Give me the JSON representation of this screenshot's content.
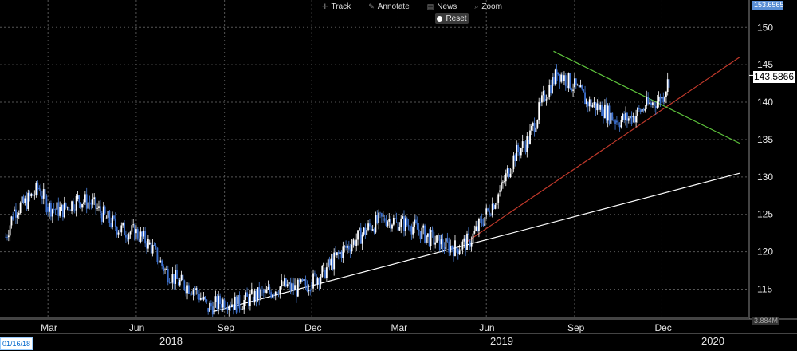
{
  "toolbar": {
    "track_label": "Track",
    "annotate_label": "Annotate",
    "news_label": "News",
    "zoom_label": "Zoom",
    "reset_label": "Reset"
  },
  "price_labels": {
    "top": "153.6565",
    "last": "143.5866"
  },
  "date_stamp": "01/16/18",
  "volume_label": "3.884M",
  "chart_data": {
    "type": "candlestick",
    "x_months": [
      "Mar",
      "Jun",
      "Sep",
      "Dec",
      "Mar",
      "Jun",
      "Sep",
      "Dec"
    ],
    "x_years": [
      "2018",
      "2019",
      "2020"
    ],
    "y_ticks": [
      115,
      120,
      125,
      130,
      135,
      140,
      145,
      150
    ],
    "ylim": [
      111,
      153.6565
    ],
    "grid": true,
    "series_close": [
      [
        "2018-01-16",
        122
      ],
      [
        "2018-01-25",
        125.5
      ],
      [
        "2018-02-05",
        126.5
      ],
      [
        "2018-02-20",
        128.5
      ],
      [
        "2018-03-01",
        126
      ],
      [
        "2018-03-15",
        125.5
      ],
      [
        "2018-04-01",
        127
      ],
      [
        "2018-04-15",
        126.5
      ],
      [
        "2018-05-01",
        124.5
      ],
      [
        "2018-05-15",
        123
      ],
      [
        "2018-06-01",
        122.5
      ],
      [
        "2018-06-15",
        121
      ],
      [
        "2018-07-01",
        117.5
      ],
      [
        "2018-07-15",
        116
      ],
      [
        "2018-08-01",
        115
      ],
      [
        "2018-08-15",
        112.5
      ],
      [
        "2018-09-01",
        113.5
      ],
      [
        "2018-09-15",
        113
      ],
      [
        "2018-10-01",
        114
      ],
      [
        "2018-10-15",
        114.5
      ],
      [
        "2018-11-01",
        115.5
      ],
      [
        "2018-11-15",
        115
      ],
      [
        "2018-12-01",
        116
      ],
      [
        "2018-12-15",
        117.5
      ],
      [
        "2019-01-01",
        120
      ],
      [
        "2019-01-15",
        121.5
      ],
      [
        "2019-02-01",
        123.5
      ],
      [
        "2019-02-15",
        124.5
      ],
      [
        "2019-03-01",
        124
      ],
      [
        "2019-03-15",
        123.5
      ],
      [
        "2019-04-01",
        122
      ],
      [
        "2019-04-15",
        121
      ],
      [
        "2019-05-01",
        120.5
      ],
      [
        "2019-05-15",
        121.5
      ],
      [
        "2019-06-01",
        125
      ],
      [
        "2019-06-15",
        128
      ],
      [
        "2019-07-01",
        133
      ],
      [
        "2019-07-15",
        135
      ],
      [
        "2019-08-01",
        141
      ],
      [
        "2019-08-15",
        144
      ],
      [
        "2019-09-01",
        142
      ],
      [
        "2019-09-15",
        140
      ],
      [
        "2019-10-01",
        139
      ],
      [
        "2019-10-15",
        137.5
      ],
      [
        "2019-11-01",
        138
      ],
      [
        "2019-11-15",
        139.5
      ],
      [
        "2019-12-01",
        140.5
      ],
      [
        "2019-12-10",
        143.6
      ]
    ],
    "trendlines": [
      {
        "color": "#ffffff",
        "from": [
          "2018-08-20",
          112
        ],
        "to": [
          "2020-02-20",
          130.5
        ]
      },
      {
        "color": "#c0392b",
        "from": [
          "2019-05-10",
          121.2
        ],
        "to": [
          "2020-02-20",
          146
        ]
      },
      {
        "color": "#5ec43c",
        "from": [
          "2019-08-10",
          146.8
        ],
        "to": [
          "2020-02-20",
          134.5
        ]
      }
    ],
    "last_price": 143.5866
  }
}
